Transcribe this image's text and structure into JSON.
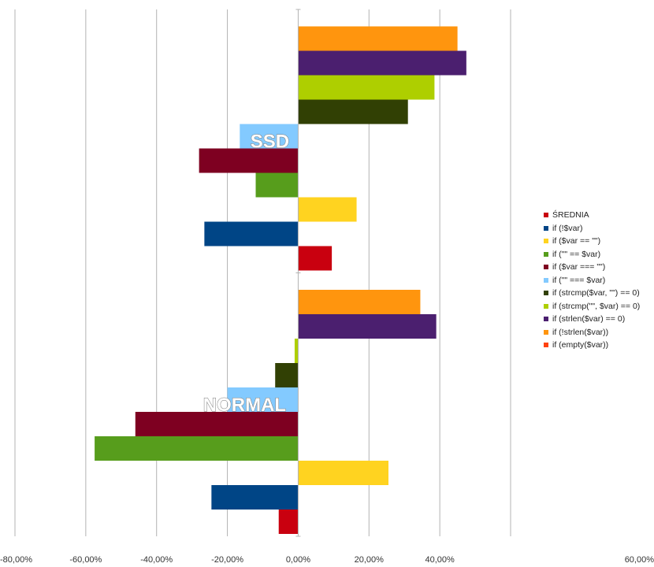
{
  "chart_data": {
    "type": "bar",
    "orientation": "horizontal",
    "xlim": [
      -0.8,
      0.6
    ],
    "x_ticks": [
      -0.8,
      -0.6,
      -0.4,
      -0.2,
      0,
      0.2,
      0.4,
      0.6
    ],
    "x_tick_labels": [
      "-80,00%",
      "-60,00%",
      "-40,00%",
      "-20,00%",
      "0,00%",
      "20,00%",
      "40,00%",
      "60,00%"
    ],
    "grid": "vertical",
    "legend_position": "right",
    "categories": [
      "NORMAL",
      "SSD"
    ],
    "series": [
      {
        "name": "ŚREDNIA",
        "color": "#c9000f",
        "values": [
          -0.055,
          0.095
        ]
      },
      {
        "name": "if (!$var)",
        "color": "#004586",
        "values": [
          -0.245,
          -0.265
        ]
      },
      {
        "name": "if ($var == \"\")",
        "color": "#ffd320",
        "values": [
          0.255,
          0.165
        ]
      },
      {
        "name": "if (\"\" == $var)",
        "color": "#579d1c",
        "values": [
          -0.575,
          -0.12
        ]
      },
      {
        "name": "if ($var === \"\")",
        "color": "#7e0021",
        "values": [
          -0.46,
          -0.28
        ]
      },
      {
        "name": "if (\"\" === $var)",
        "color": "#83caff",
        "values": [
          -0.2,
          -0.165
        ]
      },
      {
        "name": "if (strcmp($var, \"\") == 0)",
        "color": "#314004",
        "values": [
          -0.065,
          0.31
        ]
      },
      {
        "name": "if (strcmp(\"\", $var) == 0)",
        "color": "#aecf00",
        "values": [
          -0.01,
          0.385
        ]
      },
      {
        "name": "if (strlen($var) == 0)",
        "color": "#4b1f6f",
        "values": [
          0.39,
          0.475
        ]
      },
      {
        "name": "if (!strlen($var))",
        "color": "#ff950e",
        "values": [
          0.345,
          0.45
        ]
      },
      {
        "name": "if (empty($var))",
        "color": "#ff420e",
        "values": [
          0,
          0
        ]
      }
    ]
  }
}
